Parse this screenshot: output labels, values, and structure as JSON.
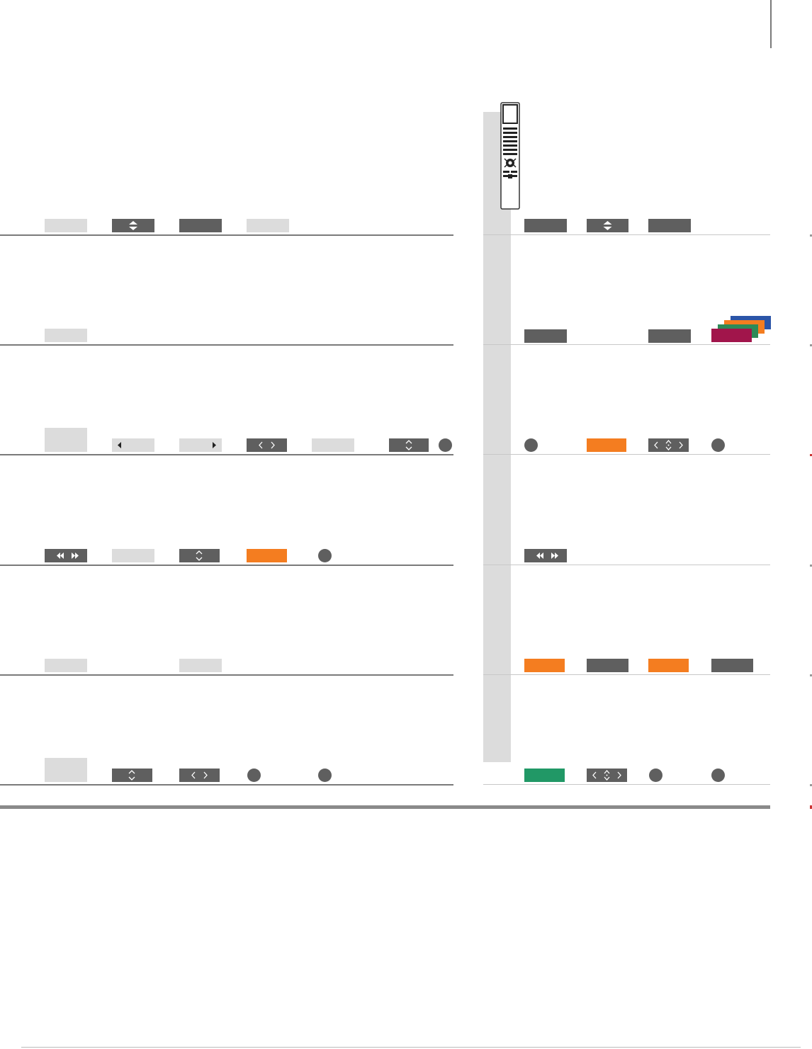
{
  "page": {
    "background": "#ffffff",
    "colors": {
      "light_key": "#dcdcdc",
      "dark_key": "#5f5f5f",
      "orange_key": "#f47d20",
      "green_key": "#219866",
      "blue_key": "#2b55a8",
      "red_key": "#a1154b",
      "sidebar": "#dcdcdc",
      "rule": "#7a7a7a"
    },
    "icons": [
      "remote-control-icon",
      "up-down-arrows-icon",
      "left-arrow-icon",
      "right-arrow-icon",
      "left-right-chevrons-icon",
      "up-down-chevrons-icon",
      "four-way-chevrons-icon",
      "rewind-forward-icon",
      "circle-button-icon",
      "color-keys-stack-icon"
    ]
  }
}
